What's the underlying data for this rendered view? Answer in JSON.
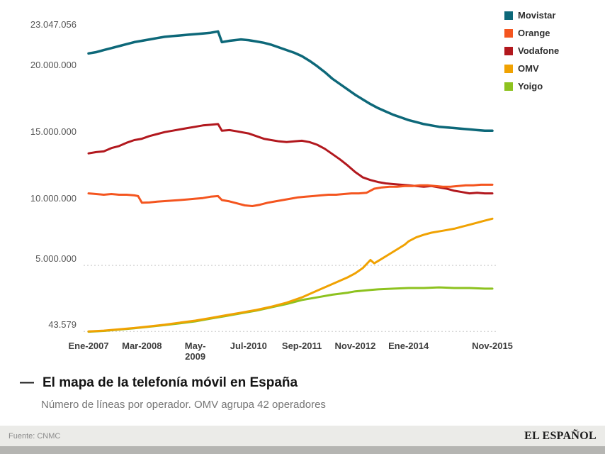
{
  "legend": {
    "items": [
      {
        "label": "Movistar",
        "color": "#0d6879"
      },
      {
        "label": "Orange",
        "color": "#f4551f"
      },
      {
        "label": "Vodafone",
        "color": "#b2181e"
      },
      {
        "label": "OMV",
        "color": "#f0a202"
      },
      {
        "label": "Yoigo",
        "color": "#8dc21f"
      }
    ]
  },
  "chart_data": {
    "type": "line",
    "title": "El mapa de la telefonía móvil en España",
    "subtitle": "Número de líneas por operador. OMV agrupa 42 operadores",
    "y_unit": "millions of lines",
    "x_unit": "months since Ene-2007",
    "xlim": [
      0,
      106
    ],
    "ylim": [
      0,
      23.047056
    ],
    "grid_values": [
      5,
      0.043579
    ],
    "grid_on": "dotted lines at 5.000.000 and 43.579 only",
    "legend_position": "top-right",
    "y_ticks": [
      {
        "value": 23.047056,
        "label": "23.047.056"
      },
      {
        "value": 20,
        "label": "20.000.000"
      },
      {
        "value": 15,
        "label": "15.000.000"
      },
      {
        "value": 10,
        "label": "10.000.000"
      },
      {
        "value": 5,
        "label": "5.000.000"
      },
      {
        "value": 0.043579,
        "label": "43.579"
      }
    ],
    "x_ticks": [
      {
        "pos": 0,
        "label": "Ene-2007"
      },
      {
        "pos": 14,
        "label": "Mar-2008"
      },
      {
        "pos": 28,
        "label": "May-\n2009"
      },
      {
        "pos": 42,
        "label": "Jul-2010"
      },
      {
        "pos": 56,
        "label": "Sep-2011"
      },
      {
        "pos": 70,
        "label": "Nov-2012"
      },
      {
        "pos": 84,
        "label": "Ene-2014"
      },
      {
        "pos": 106,
        "label": "Nov-2015"
      }
    ],
    "series": [
      {
        "name": "Movistar",
        "color": "#0d6879",
        "points": [
          [
            0,
            20.9
          ],
          [
            2,
            21.0
          ],
          [
            4,
            21.15
          ],
          [
            6,
            21.3
          ],
          [
            8,
            21.45
          ],
          [
            10,
            21.6
          ],
          [
            12,
            21.75
          ],
          [
            14,
            21.85
          ],
          [
            16,
            21.95
          ],
          [
            18,
            22.05
          ],
          [
            20,
            22.15
          ],
          [
            22,
            22.2
          ],
          [
            24,
            22.25
          ],
          [
            26,
            22.3
          ],
          [
            28,
            22.35
          ],
          [
            30,
            22.4
          ],
          [
            32,
            22.45
          ],
          [
            34,
            22.55
          ],
          [
            35,
            21.75
          ],
          [
            37,
            21.85
          ],
          [
            40,
            21.95
          ],
          [
            42,
            21.9
          ],
          [
            44,
            21.8
          ],
          [
            46,
            21.7
          ],
          [
            48,
            21.55
          ],
          [
            50,
            21.35
          ],
          [
            52,
            21.15
          ],
          [
            54,
            20.95
          ],
          [
            56,
            20.7
          ],
          [
            58,
            20.35
          ],
          [
            60,
            19.95
          ],
          [
            62,
            19.5
          ],
          [
            64,
            19.0
          ],
          [
            66,
            18.6
          ],
          [
            68,
            18.2
          ],
          [
            70,
            17.8
          ],
          [
            72,
            17.45
          ],
          [
            74,
            17.1
          ],
          [
            76,
            16.8
          ],
          [
            78,
            16.55
          ],
          [
            80,
            16.3
          ],
          [
            82,
            16.1
          ],
          [
            84,
            15.9
          ],
          [
            86,
            15.75
          ],
          [
            88,
            15.6
          ],
          [
            90,
            15.5
          ],
          [
            92,
            15.4
          ],
          [
            94,
            15.35
          ],
          [
            96,
            15.3
          ],
          [
            98,
            15.25
          ],
          [
            100,
            15.2
          ],
          [
            102,
            15.15
          ],
          [
            104,
            15.1
          ],
          [
            106,
            15.1
          ]
        ]
      },
      {
        "name": "Orange",
        "color": "#f4551f",
        "points": [
          [
            0,
            10.4
          ],
          [
            2,
            10.35
          ],
          [
            4,
            10.3
          ],
          [
            6,
            10.35
          ],
          [
            8,
            10.3
          ],
          [
            10,
            10.3
          ],
          [
            12,
            10.25
          ],
          [
            13,
            10.2
          ],
          [
            14,
            9.7
          ],
          [
            16,
            9.72
          ],
          [
            18,
            9.78
          ],
          [
            20,
            9.82
          ],
          [
            22,
            9.86
          ],
          [
            24,
            9.9
          ],
          [
            26,
            9.95
          ],
          [
            28,
            10.0
          ],
          [
            30,
            10.05
          ],
          [
            32,
            10.15
          ],
          [
            34,
            10.2
          ],
          [
            35,
            9.9
          ],
          [
            37,
            9.8
          ],
          [
            39,
            9.65
          ],
          [
            41,
            9.5
          ],
          [
            43,
            9.45
          ],
          [
            45,
            9.55
          ],
          [
            47,
            9.7
          ],
          [
            49,
            9.8
          ],
          [
            51,
            9.9
          ],
          [
            53,
            10.0
          ],
          [
            55,
            10.1
          ],
          [
            57,
            10.15
          ],
          [
            59,
            10.2
          ],
          [
            61,
            10.25
          ],
          [
            63,
            10.3
          ],
          [
            65,
            10.3
          ],
          [
            67,
            10.35
          ],
          [
            69,
            10.4
          ],
          [
            71,
            10.4
          ],
          [
            73,
            10.45
          ],
          [
            75,
            10.75
          ],
          [
            77,
            10.85
          ],
          [
            79,
            10.9
          ],
          [
            81,
            10.9
          ],
          [
            83,
            10.95
          ],
          [
            85,
            10.95
          ],
          [
            87,
            11.0
          ],
          [
            89,
            11.0
          ],
          [
            91,
            10.95
          ],
          [
            93,
            10.9
          ],
          [
            95,
            10.9
          ],
          [
            97,
            10.95
          ],
          [
            99,
            11.0
          ],
          [
            101,
            11.0
          ],
          [
            103,
            11.05
          ],
          [
            106,
            11.05
          ]
        ]
      },
      {
        "name": "Vodafone",
        "color": "#b2181e",
        "points": [
          [
            0,
            13.4
          ],
          [
            2,
            13.5
          ],
          [
            4,
            13.55
          ],
          [
            6,
            13.8
          ],
          [
            8,
            13.95
          ],
          [
            10,
            14.2
          ],
          [
            12,
            14.4
          ],
          [
            14,
            14.5
          ],
          [
            16,
            14.7
          ],
          [
            18,
            14.85
          ],
          [
            20,
            15.0
          ],
          [
            22,
            15.1
          ],
          [
            24,
            15.2
          ],
          [
            26,
            15.3
          ],
          [
            28,
            15.4
          ],
          [
            30,
            15.5
          ],
          [
            32,
            15.55
          ],
          [
            34,
            15.6
          ],
          [
            35,
            15.1
          ],
          [
            37,
            15.15
          ],
          [
            39,
            15.05
          ],
          [
            42,
            14.9
          ],
          [
            44,
            14.7
          ],
          [
            46,
            14.5
          ],
          [
            48,
            14.4
          ],
          [
            50,
            14.3
          ],
          [
            52,
            14.25
          ],
          [
            54,
            14.3
          ],
          [
            56,
            14.35
          ],
          [
            58,
            14.25
          ],
          [
            60,
            14.05
          ],
          [
            62,
            13.75
          ],
          [
            64,
            13.35
          ],
          [
            66,
            12.95
          ],
          [
            68,
            12.5
          ],
          [
            70,
            12.0
          ],
          [
            72,
            11.6
          ],
          [
            74,
            11.4
          ],
          [
            76,
            11.25
          ],
          [
            78,
            11.15
          ],
          [
            80,
            11.1
          ],
          [
            82,
            11.05
          ],
          [
            84,
            11.0
          ],
          [
            86,
            10.95
          ],
          [
            88,
            10.9
          ],
          [
            90,
            10.95
          ],
          [
            92,
            10.85
          ],
          [
            94,
            10.75
          ],
          [
            96,
            10.6
          ],
          [
            98,
            10.5
          ],
          [
            100,
            10.4
          ],
          [
            102,
            10.45
          ],
          [
            104,
            10.4
          ],
          [
            106,
            10.4
          ]
        ]
      },
      {
        "name": "OMV",
        "color": "#f0a202",
        "points": [
          [
            0,
            0.04
          ],
          [
            4,
            0.1
          ],
          [
            8,
            0.2
          ],
          [
            12,
            0.3
          ],
          [
            16,
            0.42
          ],
          [
            20,
            0.55
          ],
          [
            24,
            0.7
          ],
          [
            28,
            0.85
          ],
          [
            32,
            1.05
          ],
          [
            36,
            1.25
          ],
          [
            40,
            1.45
          ],
          [
            42,
            1.55
          ],
          [
            44,
            1.65
          ],
          [
            48,
            1.9
          ],
          [
            52,
            2.2
          ],
          [
            56,
            2.6
          ],
          [
            60,
            3.1
          ],
          [
            64,
            3.6
          ],
          [
            68,
            4.1
          ],
          [
            70,
            4.4
          ],
          [
            72,
            4.8
          ],
          [
            74,
            5.4
          ],
          [
            75,
            5.15
          ],
          [
            77,
            5.5
          ],
          [
            79,
            5.85
          ],
          [
            81,
            6.2
          ],
          [
            83,
            6.55
          ],
          [
            84,
            6.8
          ],
          [
            86,
            7.1
          ],
          [
            88,
            7.3
          ],
          [
            90,
            7.45
          ],
          [
            92,
            7.55
          ],
          [
            94,
            7.65
          ],
          [
            96,
            7.75
          ],
          [
            98,
            7.9
          ],
          [
            100,
            8.05
          ],
          [
            102,
            8.2
          ],
          [
            104,
            8.35
          ],
          [
            106,
            8.5
          ]
        ]
      },
      {
        "name": "Yoigo",
        "color": "#8dc21f",
        "points": [
          [
            0,
            0.02
          ],
          [
            4,
            0.08
          ],
          [
            8,
            0.18
          ],
          [
            12,
            0.28
          ],
          [
            16,
            0.4
          ],
          [
            20,
            0.52
          ],
          [
            24,
            0.65
          ],
          [
            28,
            0.8
          ],
          [
            32,
            1.0
          ],
          [
            36,
            1.2
          ],
          [
            40,
            1.4
          ],
          [
            44,
            1.6
          ],
          [
            48,
            1.85
          ],
          [
            52,
            2.1
          ],
          [
            56,
            2.4
          ],
          [
            60,
            2.6
          ],
          [
            64,
            2.8
          ],
          [
            68,
            2.95
          ],
          [
            70,
            3.05
          ],
          [
            72,
            3.1
          ],
          [
            74,
            3.15
          ],
          [
            76,
            3.2
          ],
          [
            80,
            3.25
          ],
          [
            84,
            3.3
          ],
          [
            88,
            3.3
          ],
          [
            92,
            3.35
          ],
          [
            96,
            3.3
          ],
          [
            100,
            3.3
          ],
          [
            104,
            3.25
          ],
          [
            106,
            3.25
          ]
        ]
      }
    ]
  },
  "titleBlock": {
    "dash": "—",
    "title": "El mapa de la telefonía móvil en España",
    "subtitle": "Número de líneas por operador. OMV agrupa 42 operadores"
  },
  "footer": {
    "source": "Fuente: CNMC",
    "brand": "EL ESPAÑOL"
  }
}
